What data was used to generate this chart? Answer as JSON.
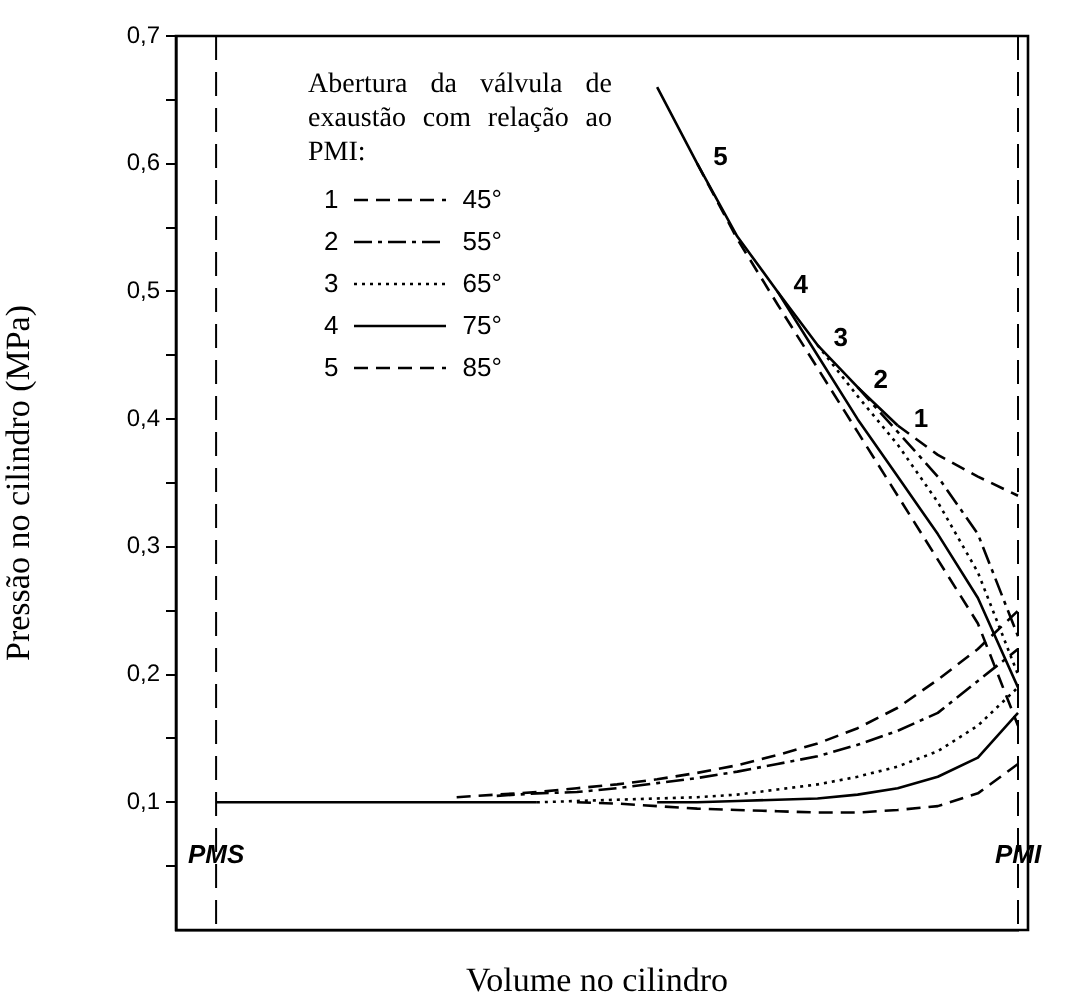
{
  "chart_data": {
    "type": "line",
    "xlabel": "Volume no cilindro",
    "ylabel": "Pressão no cilindro (MPa)",
    "legend_title": "Abertura da válvula de exaustão com relação ao PMI:",
    "legend": "top left",
    "grid": false,
    "marker": "none",
    "categories": [
      null,
      "PMS",
      null,
      null,
      null,
      null,
      null,
      null,
      null,
      null,
      null,
      null,
      null,
      null,
      null,
      null,
      null,
      null,
      null,
      null,
      null,
      "PMI"
    ],
    "ylim": [
      0,
      0.7
    ],
    "yticks": [
      {
        "value": 0.05,
        "label": null
      },
      {
        "value": 0.1,
        "label": "0,1"
      },
      {
        "value": 0.15,
        "label": null
      },
      {
        "value": 0.2,
        "label": "0,2"
      },
      {
        "value": 0.25,
        "label": null
      },
      {
        "value": 0.3,
        "label": "0,3"
      },
      {
        "value": 0.35,
        "label": null
      },
      {
        "value": 0.4,
        "label": "0,4"
      },
      {
        "value": 0.45,
        "label": null
      },
      {
        "value": 0.5,
        "label": "0,5"
      },
      {
        "value": 0.55,
        "label": null
      },
      {
        "value": 0.6,
        "label": "0,6"
      },
      {
        "value": 0.65,
        "label": null
      },
      {
        "value": 0.7,
        "label": "0,7"
      }
    ],
    "ref_lines": [
      {
        "axis": "x",
        "value": "PMS",
        "line_style": "dashed"
      },
      {
        "axis": "x",
        "value": "PMI",
        "line_style": "dashed"
      }
    ],
    "annotations": [
      "1",
      "2",
      "3",
      "4",
      "5"
    ],
    "series": [
      {
        "color": "#000000",
        "line_style": "solid",
        "values": [
          null,
          null,
          null,
          null,
          null,
          null,
          null,
          null,
          null,
          null,
          null,
          null,
          0.66,
          0.6,
          0.543,
          0.5,
          0.458,
          0.425,
          0.395,
          null,
          null,
          null
        ]
      },
      {
        "color": "#000000",
        "line_style": "solid",
        "values": [
          null,
          0.1,
          0.1,
          0.1,
          0.1,
          0.1,
          0.1,
          0.1,
          0.1,
          0.1,
          null,
          null,
          null,
          null,
          null,
          null,
          null,
          null,
          null,
          null,
          null,
          null
        ]
      },
      {
        "name": "45°",
        "color": "#000000",
        "line_style": "dashed",
        "values": [
          null,
          null,
          null,
          null,
          null,
          null,
          null,
          null,
          null,
          null,
          null,
          null,
          null,
          null,
          null,
          null,
          null,
          null,
          0.395,
          0.372,
          0.355,
          0.34
        ]
      },
      {
        "color": "#000000",
        "line_style": "dashed",
        "values": [
          null,
          null,
          null,
          null,
          null,
          null,
          null,
          0.104,
          0.106,
          0.108,
          0.111,
          0.114,
          0.118,
          0.123,
          0.129,
          0.137,
          0.146,
          0.158,
          0.174,
          0.196,
          0.22,
          0.25
        ]
      },
      {
        "name": "55°",
        "color": "#000000",
        "line_style": "dashdot",
        "values": [
          null,
          null,
          null,
          null,
          null,
          null,
          null,
          null,
          null,
          null,
          null,
          null,
          null,
          null,
          null,
          null,
          null,
          0.425,
          0.39,
          0.355,
          0.31,
          0.23
        ]
      },
      {
        "color": "#000000",
        "line_style": "dashdot",
        "values": [
          null,
          null,
          null,
          null,
          null,
          null,
          null,
          null,
          0.105,
          0.107,
          0.108,
          0.111,
          0.115,
          0.119,
          0.124,
          0.13,
          0.136,
          0.145,
          0.156,
          0.17,
          0.195,
          0.22
        ]
      },
      {
        "name": "65°",
        "color": "#000000",
        "line_style": "dotted",
        "values": [
          null,
          null,
          null,
          null,
          null,
          null,
          null,
          null,
          null,
          null,
          null,
          null,
          null,
          null,
          null,
          null,
          0.458,
          0.418,
          0.38,
          0.335,
          0.28,
          0.2
        ]
      },
      {
        "color": "#000000",
        "line_style": "dotted",
        "values": [
          null,
          null,
          null,
          null,
          null,
          null,
          null,
          null,
          null,
          0.1,
          0.101,
          0.102,
          0.103,
          0.104,
          0.106,
          0.11,
          0.114,
          0.12,
          0.128,
          0.14,
          0.16,
          0.19
        ]
      },
      {
        "name": "75°",
        "color": "#000000",
        "line_style": "solid",
        "values": [
          null,
          null,
          null,
          null,
          null,
          null,
          null,
          null,
          null,
          null,
          null,
          null,
          null,
          null,
          null,
          0.5,
          0.45,
          0.4,
          0.355,
          0.31,
          0.26,
          0.19
        ]
      },
      {
        "color": "#000000",
        "line_style": "solid",
        "values": [
          null,
          null,
          null,
          null,
          null,
          null,
          null,
          null,
          null,
          null,
          null,
          null,
          0.1,
          0.1,
          0.101,
          0.102,
          0.103,
          0.106,
          0.111,
          0.12,
          0.135,
          0.17
        ]
      },
      {
        "name": "85°",
        "color": "#000000",
        "line_style": "dashed",
        "values": [
          null,
          null,
          null,
          null,
          null,
          null,
          null,
          null,
          null,
          null,
          null,
          null,
          null,
          0.6,
          0.541,
          0.49,
          0.44,
          0.39,
          0.34,
          0.29,
          0.24,
          0.16
        ]
      },
      {
        "color": "#000000",
        "line_style": "dashed",
        "values": [
          null,
          null,
          null,
          null,
          null,
          null,
          null,
          null,
          null,
          null,
          0.1,
          0.099,
          0.097,
          0.095,
          0.094,
          0.093,
          0.092,
          0.092,
          0.094,
          0.097,
          0.107,
          0.13
        ]
      }
    ]
  }
}
